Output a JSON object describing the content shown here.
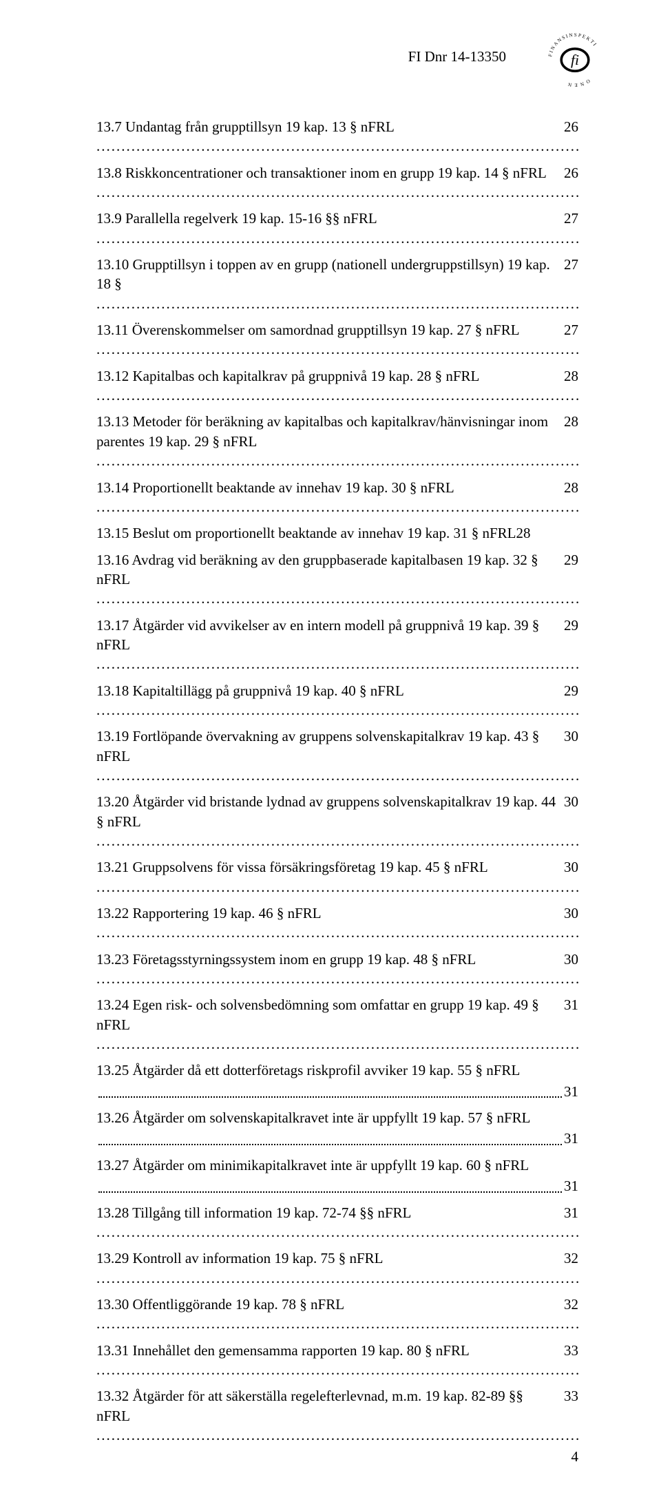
{
  "header": {
    "doc_number": "FI Dnr 14-13350",
    "logo_text_top": "FINANSINSPEKTI",
    "logo_text_bottom": "ONEN",
    "logo_glyph": "fi"
  },
  "toc": [
    {
      "title": "13.7 Undantag från grupptillsyn 19 kap. 13 § nFRL",
      "page": "26"
    },
    {
      "title": "13.8 Riskkoncentrationer och transaktioner inom en grupp 19 kap. 14 § nFRL",
      "page": "26"
    },
    {
      "title": "13.9 Parallella regelverk 19 kap. 15-16 §§ nFRL",
      "page": "27"
    },
    {
      "title": "13.10 Grupptillsyn i toppen av en grupp (nationell undergruppstillsyn) 19 kap. 18 §",
      "page": "27"
    },
    {
      "title": "13.11 Överenskommelser om samordnad grupptillsyn 19 kap. 27 § nFRL",
      "page": "27"
    },
    {
      "title": "13.12 Kapitalbas och kapitalkrav på gruppnivå 19 kap. 28 § nFRL",
      "page": "28"
    },
    {
      "title": "13.13 Metoder för beräkning av kapitalbas och kapitalkrav/hänvisningar inom parentes 19 kap. 29 § nFRL",
      "page": "28"
    },
    {
      "title": "13.14 Proportionellt beaktande av innehav 19 kap. 30 § nFRL",
      "page": "28"
    },
    {
      "title": "13.15 Beslut om proportionellt beaktande av innehav 19 kap. 31 § nFRL",
      "page": "28",
      "nodots": true
    },
    {
      "title": "13.16 Avdrag vid beräkning av den gruppbaserade kapitalbasen 19 kap. 32 § nFRL",
      "page": "29"
    },
    {
      "title": "13.17 Åtgärder vid avvikelser av en intern modell på gruppnivå 19 kap. 39 § nFRL",
      "page": "29"
    },
    {
      "title": "13.18 Kapitaltillägg på gruppnivå 19 kap. 40 § nFRL",
      "page": "29"
    },
    {
      "title": "13.19 Fortlöpande övervakning av gruppens solvenskapitalkrav 19 kap. 43 § nFRL",
      "page": "30"
    },
    {
      "title": "13.20 Åtgärder vid bristande lydnad av gruppens solvenskapitalkrav 19 kap. 44 § nFRL",
      "page": "30"
    },
    {
      "title": "13.21 Gruppsolvens för vissa försäkringsföretag 19 kap. 45 § nFRL",
      "page": "30"
    },
    {
      "title": "13.22 Rapportering 19 kap. 46 § nFRL",
      "page": "30"
    },
    {
      "title": "13.23 Företagsstyrningssystem inom en grupp 19 kap. 48 § nFRL",
      "page": "30"
    },
    {
      "title": "13.24 Egen risk- och solvensbedömning som omfattar en grupp 19 kap. 49 § nFRL",
      "page": "31"
    },
    {
      "title": "13.25 Åtgärder då ett dotterföretags riskprofil avviker 19 kap. 55 § nFRL",
      "page": "31",
      "break": true
    },
    {
      "title": "13.26 Åtgärder om solvenskapitalkravet inte är uppfyllt 19 kap. 57 § nFRL",
      "page": "31",
      "break": true
    },
    {
      "title": "13.27 Åtgärder om minimikapitalkravet inte är uppfyllt 19 kap. 60 § nFRL",
      "page": "31",
      "break": true
    },
    {
      "title": "13.28 Tillgång till information 19 kap. 72-74 §§ nFRL",
      "page": "31"
    },
    {
      "title": "13.29 Kontroll av information 19 kap. 75 § nFRL",
      "page": "32"
    },
    {
      "title": "13.30 Offentliggörande 19 kap. 78 § nFRL",
      "page": "32"
    },
    {
      "title": "13.31 Innehållet den gemensamma rapporten 19 kap. 80 § nFRL",
      "page": "33"
    },
    {
      "title": "13.32 Åtgärder för att säkerställa regelefterlevnad, m.m. 19 kap. 82-89 §§ nFRL",
      "page": "33"
    }
  ],
  "footer": {
    "page_number": "4"
  },
  "style": {
    "font_family": "Times New Roman",
    "font_size_body": 21,
    "text_color": "#000000",
    "background_color": "#ffffff",
    "logo_stroke": "#000000"
  }
}
